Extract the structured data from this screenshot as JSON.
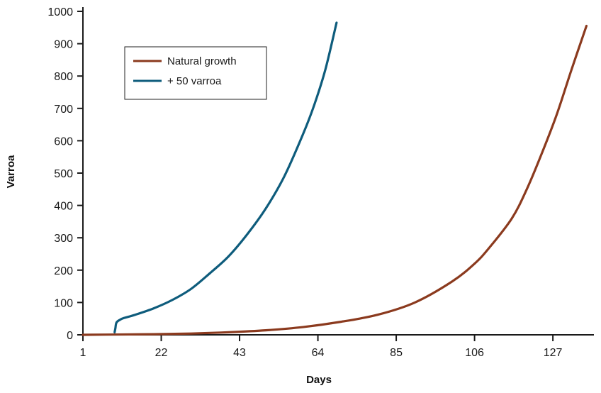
{
  "chart_data": {
    "type": "line",
    "title": "",
    "xlabel": "Days",
    "ylabel": "Varroa",
    "xlim": [
      1,
      138
    ],
    "ylim": [
      0,
      1000
    ],
    "xticks": [
      1,
      22,
      43,
      64,
      85,
      106,
      127
    ],
    "yticks": [
      0,
      100,
      200,
      300,
      400,
      500,
      600,
      700,
      800,
      900,
      1000
    ],
    "grid": false,
    "legend_position": "top-left",
    "series": [
      {
        "name": "Natural growth",
        "color": "#8b3a1e",
        "x": [
          1,
          10,
          20,
          30,
          40,
          50,
          60,
          70,
          80,
          90,
          100,
          106,
          110,
          116,
          120,
          124,
          128,
          132,
          136
        ],
        "y": [
          0,
          1,
          2,
          4,
          8,
          14,
          24,
          40,
          62,
          100,
          165,
          220,
          270,
          360,
          450,
          560,
          680,
          820,
          955
        ]
      },
      {
        "name": "+ 50 varroa",
        "color": "#0e5c7c",
        "x": [
          9.5,
          9.7,
          10,
          11,
          12,
          15,
          20,
          25,
          30,
          35,
          40,
          45,
          50,
          55,
          60,
          63,
          66,
          69
        ],
        "y": [
          8,
          20,
          38,
          47,
          52,
          62,
          82,
          108,
          142,
          190,
          242,
          310,
          390,
          490,
          620,
          710,
          820,
          965
        ]
      }
    ]
  }
}
